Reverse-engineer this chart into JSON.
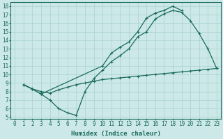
{
  "line1": {
    "x": [
      1,
      2,
      3,
      4,
      5,
      6,
      7,
      8,
      9,
      10,
      11,
      12,
      13,
      14,
      15,
      16,
      17,
      18,
      19,
      20,
      21,
      22,
      23
    ],
    "y": [
      8.8,
      8.3,
      7.7,
      7.0,
      6.0,
      5.5,
      5.2,
      8.0,
      9.5,
      10.5,
      11.5,
      12.2,
      13.0,
      14.4,
      15.0,
      16.5,
      17.1,
      17.5,
      17.3,
      16.3,
      14.8,
      13.0,
      10.7
    ]
  },
  "line2": {
    "x": [
      1,
      2,
      3,
      10,
      11,
      12,
      13,
      14,
      15,
      16,
      17,
      18,
      19
    ],
    "y": [
      8.8,
      8.3,
      7.7,
      11.0,
      12.5,
      13.2,
      13.8,
      15.0,
      16.6,
      17.2,
      17.5,
      18.0,
      17.5
    ]
  },
  "line3": {
    "x": [
      1,
      2,
      3,
      4,
      5,
      6,
      7,
      8,
      9,
      10,
      11,
      12,
      13,
      14,
      15,
      16,
      17,
      18,
      19,
      20,
      21,
      22,
      23
    ],
    "y": [
      8.8,
      8.3,
      8.0,
      7.8,
      8.2,
      8.5,
      8.8,
      9.0,
      9.2,
      9.4,
      9.5,
      9.6,
      9.7,
      9.8,
      9.9,
      10.0,
      10.1,
      10.2,
      10.3,
      10.4,
      10.5,
      10.6,
      10.7
    ]
  },
  "color": "#1a6b5a",
  "bg_color": "#cce8e8",
  "grid_color": "#aed4d4",
  "xlim": [
    -0.5,
    23.5
  ],
  "ylim": [
    4.8,
    18.5
  ],
  "yticks": [
    5,
    6,
    7,
    8,
    9,
    10,
    11,
    12,
    13,
    14,
    15,
    16,
    17,
    18
  ],
  "xticks": [
    0,
    1,
    2,
    3,
    4,
    5,
    6,
    7,
    8,
    9,
    10,
    11,
    12,
    13,
    14,
    15,
    16,
    17,
    18,
    19,
    20,
    21,
    22,
    23
  ],
  "xlabel": "Humidex (Indice chaleur)",
  "marker": "+",
  "markersize": 3,
  "linewidth": 0.9,
  "fontsize_label": 6.5,
  "fontsize_tick": 5.5
}
